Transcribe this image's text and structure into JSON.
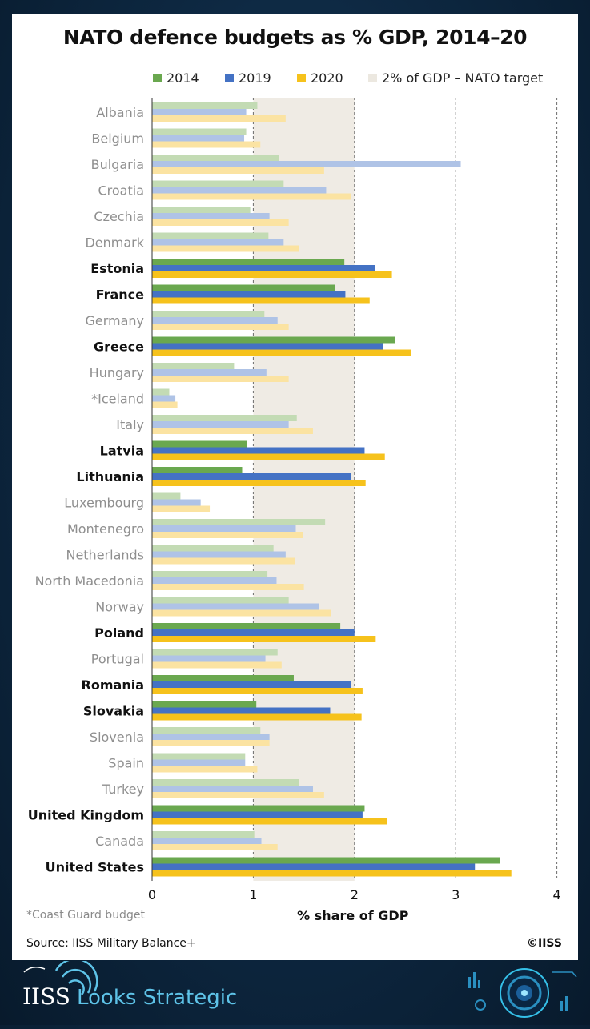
{
  "title": "NATO defence budgets as % GDP, 2014–20",
  "legend": [
    {
      "label": "2014",
      "color": "#6aa84f"
    },
    {
      "label": "2019",
      "color": "#4472c4"
    },
    {
      "label": "2020",
      "color": "#f6c21c"
    },
    {
      "label": "2% of GDP – NATO target",
      "color": "#ece8e0"
    }
  ],
  "footnote": "*Coast Guard budget",
  "source": "Source: IISS Military Balance+",
  "copyright": "©IISS",
  "brand": {
    "name": "IISS",
    "tagline": "Looks Strategic"
  },
  "chart_data": {
    "type": "bar",
    "orientation": "horizontal",
    "title": "NATO defence budgets as % GDP, 2014–20",
    "xlabel": "% share of GDP",
    "xlim": [
      0,
      4
    ],
    "xticks": [
      0,
      1,
      2,
      3,
      4
    ],
    "target_band": [
      1,
      2
    ],
    "target_label": "2% of GDP – NATO target",
    "legend_position": "top",
    "categories": [
      "Albania",
      "Belgium",
      "Bulgaria",
      "Croatia",
      "Czechia",
      "Denmark",
      "Estonia",
      "France",
      "Germany",
      "Greece",
      "Hungary",
      "*Iceland",
      "Italy",
      "Latvia",
      "Lithuania",
      "Luxembourg",
      "Montenegro",
      "Netherlands",
      "North Macedonia",
      "Norway",
      "Poland",
      "Portugal",
      "Romania",
      "Slovakia",
      "Slovenia",
      "Spain",
      "Turkey",
      "United Kingdom",
      "Canada",
      "United States"
    ],
    "highlighted": [
      "Estonia",
      "France",
      "Greece",
      "Latvia",
      "Lithuania",
      "Poland",
      "Romania",
      "Slovakia",
      "United Kingdom",
      "United States"
    ],
    "series": [
      {
        "name": "2014",
        "color": "#6aa84f",
        "faded_color": "#c3dbb4",
        "values": [
          1.04,
          0.93,
          1.25,
          1.3,
          0.97,
          1.15,
          1.9,
          1.81,
          1.11,
          2.4,
          0.81,
          0.17,
          1.43,
          0.94,
          0.89,
          0.28,
          1.71,
          1.2,
          1.14,
          1.35,
          1.86,
          1.24,
          1.4,
          1.03,
          1.07,
          0.92,
          1.45,
          2.1,
          1.01,
          3.44
        ]
      },
      {
        "name": "2019",
        "color": "#4472c4",
        "faded_color": "#afc3e6",
        "values": [
          0.93,
          0.91,
          3.05,
          1.72,
          1.16,
          1.3,
          2.2,
          1.91,
          1.24,
          2.28,
          1.13,
          0.23,
          1.35,
          2.1,
          1.97,
          0.48,
          1.42,
          1.32,
          1.23,
          1.65,
          2.0,
          1.12,
          1.97,
          1.76,
          1.16,
          0.92,
          1.59,
          2.08,
          1.08,
          3.19
        ]
      },
      {
        "name": "2020",
        "color": "#f6c21c",
        "faded_color": "#fbe3a2",
        "values": [
          1.32,
          1.07,
          1.7,
          1.97,
          1.35,
          1.45,
          2.37,
          2.15,
          1.35,
          2.56,
          1.35,
          0.25,
          1.59,
          2.3,
          2.11,
          0.57,
          1.49,
          1.41,
          1.5,
          1.77,
          2.21,
          1.28,
          2.08,
          2.07,
          1.16,
          1.04,
          1.7,
          2.32,
          1.24,
          3.55
        ]
      }
    ]
  }
}
